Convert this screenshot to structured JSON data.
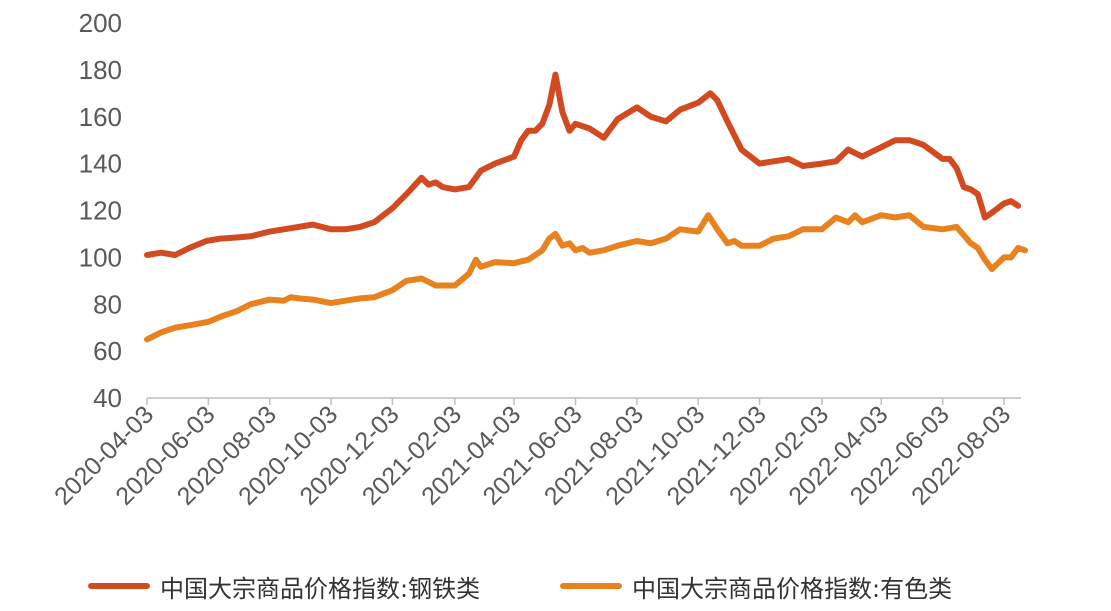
{
  "chart_data": {
    "type": "line",
    "title": "",
    "xlabel": "",
    "ylabel": "",
    "ylim": [
      40,
      200
    ],
    "yticks": [
      40,
      60,
      80,
      100,
      120,
      140,
      160,
      180,
      200
    ],
    "x_ticks": [
      "2020-04-03",
      "2020-06-03",
      "2020-08-03",
      "2020-10-03",
      "2020-12-03",
      "2021-02-03",
      "2021-04-03",
      "2021-06-03",
      "2021-08-03",
      "2021-10-03",
      "2021-12-03",
      "2022-02-03",
      "2022-04-03",
      "2022-06-03",
      "2022-08-03"
    ],
    "grid": false,
    "legend_position": "bottom",
    "series": [
      {
        "name": "中国大宗商品价格指数:钢铁类",
        "color": "#d24a1f",
        "points": [
          [
            "2020-04-03",
            101
          ],
          [
            "2020-04-17",
            102
          ],
          [
            "2020-05-01",
            101
          ],
          [
            "2020-05-15",
            104
          ],
          [
            "2020-06-01",
            107
          ],
          [
            "2020-06-15",
            108
          ],
          [
            "2020-07-01",
            108.5
          ],
          [
            "2020-07-15",
            109
          ],
          [
            "2020-08-03",
            111
          ],
          [
            "2020-08-17",
            112
          ],
          [
            "2020-09-01",
            113
          ],
          [
            "2020-09-15",
            114
          ],
          [
            "2020-10-03",
            112
          ],
          [
            "2020-10-17",
            112
          ],
          [
            "2020-11-01",
            113
          ],
          [
            "2020-11-15",
            115
          ],
          [
            "2020-12-03",
            121
          ],
          [
            "2020-12-17",
            127
          ],
          [
            "2021-01-01",
            134
          ],
          [
            "2021-01-08",
            131
          ],
          [
            "2021-01-15",
            132
          ],
          [
            "2021-01-22",
            130
          ],
          [
            "2021-02-03",
            129
          ],
          [
            "2021-02-17",
            130
          ],
          [
            "2021-03-01",
            137
          ],
          [
            "2021-03-15",
            140
          ],
          [
            "2021-04-03",
            143
          ],
          [
            "2021-04-10",
            150
          ],
          [
            "2021-04-17",
            154
          ],
          [
            "2021-04-24",
            154
          ],
          [
            "2021-05-01",
            157
          ],
          [
            "2021-05-08",
            165
          ],
          [
            "2021-05-14",
            178
          ],
          [
            "2021-05-21",
            162
          ],
          [
            "2021-05-28",
            154
          ],
          [
            "2021-06-03",
            157
          ],
          [
            "2021-06-17",
            155
          ],
          [
            "2021-07-01",
            151
          ],
          [
            "2021-07-15",
            159
          ],
          [
            "2021-08-03",
            164
          ],
          [
            "2021-08-17",
            160
          ],
          [
            "2021-09-01",
            158
          ],
          [
            "2021-09-15",
            163
          ],
          [
            "2021-10-03",
            166
          ],
          [
            "2021-10-15",
            170
          ],
          [
            "2021-10-22",
            167
          ],
          [
            "2021-11-01",
            158
          ],
          [
            "2021-11-15",
            146
          ],
          [
            "2021-12-03",
            140
          ],
          [
            "2021-12-17",
            141
          ],
          [
            "2022-01-01",
            142
          ],
          [
            "2022-01-15",
            139
          ],
          [
            "2022-02-03",
            140
          ],
          [
            "2022-02-17",
            141
          ],
          [
            "2022-03-01",
            146
          ],
          [
            "2022-03-15",
            143
          ],
          [
            "2022-04-03",
            147
          ],
          [
            "2022-04-17",
            150
          ],
          [
            "2022-05-01",
            150
          ],
          [
            "2022-05-15",
            148
          ],
          [
            "2022-06-03",
            142
          ],
          [
            "2022-06-10",
            142
          ],
          [
            "2022-06-17",
            138
          ],
          [
            "2022-06-24",
            130
          ],
          [
            "2022-07-01",
            129
          ],
          [
            "2022-07-08",
            127
          ],
          [
            "2022-07-15",
            117
          ],
          [
            "2022-07-22",
            119
          ],
          [
            "2022-08-03",
            123
          ],
          [
            "2022-08-10",
            124
          ],
          [
            "2022-08-17",
            122
          ]
        ]
      },
      {
        "name": "中国大宗商品价格指数:有色类",
        "color": "#e8821e",
        "points": [
          [
            "2020-04-03",
            65
          ],
          [
            "2020-04-17",
            68
          ],
          [
            "2020-05-01",
            70
          ],
          [
            "2020-05-15",
            71
          ],
          [
            "2020-06-03",
            72.5
          ],
          [
            "2020-06-17",
            75
          ],
          [
            "2020-07-01",
            77
          ],
          [
            "2020-07-15",
            80
          ],
          [
            "2020-08-03",
            82
          ],
          [
            "2020-08-17",
            81.5
          ],
          [
            "2020-08-24",
            83
          ],
          [
            "2020-09-01",
            82.5
          ],
          [
            "2020-09-15",
            82
          ],
          [
            "2020-10-03",
            80.5
          ],
          [
            "2020-10-17",
            81.5
          ],
          [
            "2020-11-01",
            82.5
          ],
          [
            "2020-11-15",
            83
          ],
          [
            "2020-12-03",
            86
          ],
          [
            "2020-12-17",
            90
          ],
          [
            "2021-01-01",
            91
          ],
          [
            "2021-01-15",
            88
          ],
          [
            "2021-02-03",
            88
          ],
          [
            "2021-02-17",
            93
          ],
          [
            "2021-02-24",
            99
          ],
          [
            "2021-03-01",
            96
          ],
          [
            "2021-03-15",
            98
          ],
          [
            "2021-04-03",
            97.5
          ],
          [
            "2021-04-17",
            99
          ],
          [
            "2021-05-01",
            103
          ],
          [
            "2021-05-08",
            108
          ],
          [
            "2021-05-14",
            110
          ],
          [
            "2021-05-21",
            105
          ],
          [
            "2021-05-28",
            106
          ],
          [
            "2021-06-03",
            103
          ],
          [
            "2021-06-10",
            104
          ],
          [
            "2021-06-17",
            102
          ],
          [
            "2021-07-01",
            103
          ],
          [
            "2021-07-15",
            105
          ],
          [
            "2021-08-03",
            107
          ],
          [
            "2021-08-17",
            106
          ],
          [
            "2021-09-01",
            108
          ],
          [
            "2021-09-15",
            112
          ],
          [
            "2021-10-03",
            111
          ],
          [
            "2021-10-13",
            118
          ],
          [
            "2021-10-22",
            112
          ],
          [
            "2021-11-01",
            106
          ],
          [
            "2021-11-08",
            107
          ],
          [
            "2021-11-15",
            105
          ],
          [
            "2021-12-03",
            105
          ],
          [
            "2021-12-17",
            108
          ],
          [
            "2022-01-01",
            109
          ],
          [
            "2022-01-15",
            112
          ],
          [
            "2022-02-03",
            112
          ],
          [
            "2022-02-17",
            117
          ],
          [
            "2022-03-01",
            115
          ],
          [
            "2022-03-08",
            118
          ],
          [
            "2022-03-15",
            115
          ],
          [
            "2022-04-03",
            118
          ],
          [
            "2022-04-17",
            117
          ],
          [
            "2022-05-01",
            118
          ],
          [
            "2022-05-15",
            113
          ],
          [
            "2022-06-03",
            112
          ],
          [
            "2022-06-17",
            113
          ],
          [
            "2022-07-01",
            106
          ],
          [
            "2022-07-08",
            104
          ],
          [
            "2022-07-15",
            99
          ],
          [
            "2022-07-22",
            95
          ],
          [
            "2022-08-03",
            100
          ],
          [
            "2022-08-10",
            100
          ],
          [
            "2022-08-17",
            104
          ],
          [
            "2022-08-24",
            103
          ]
        ]
      }
    ]
  }
}
